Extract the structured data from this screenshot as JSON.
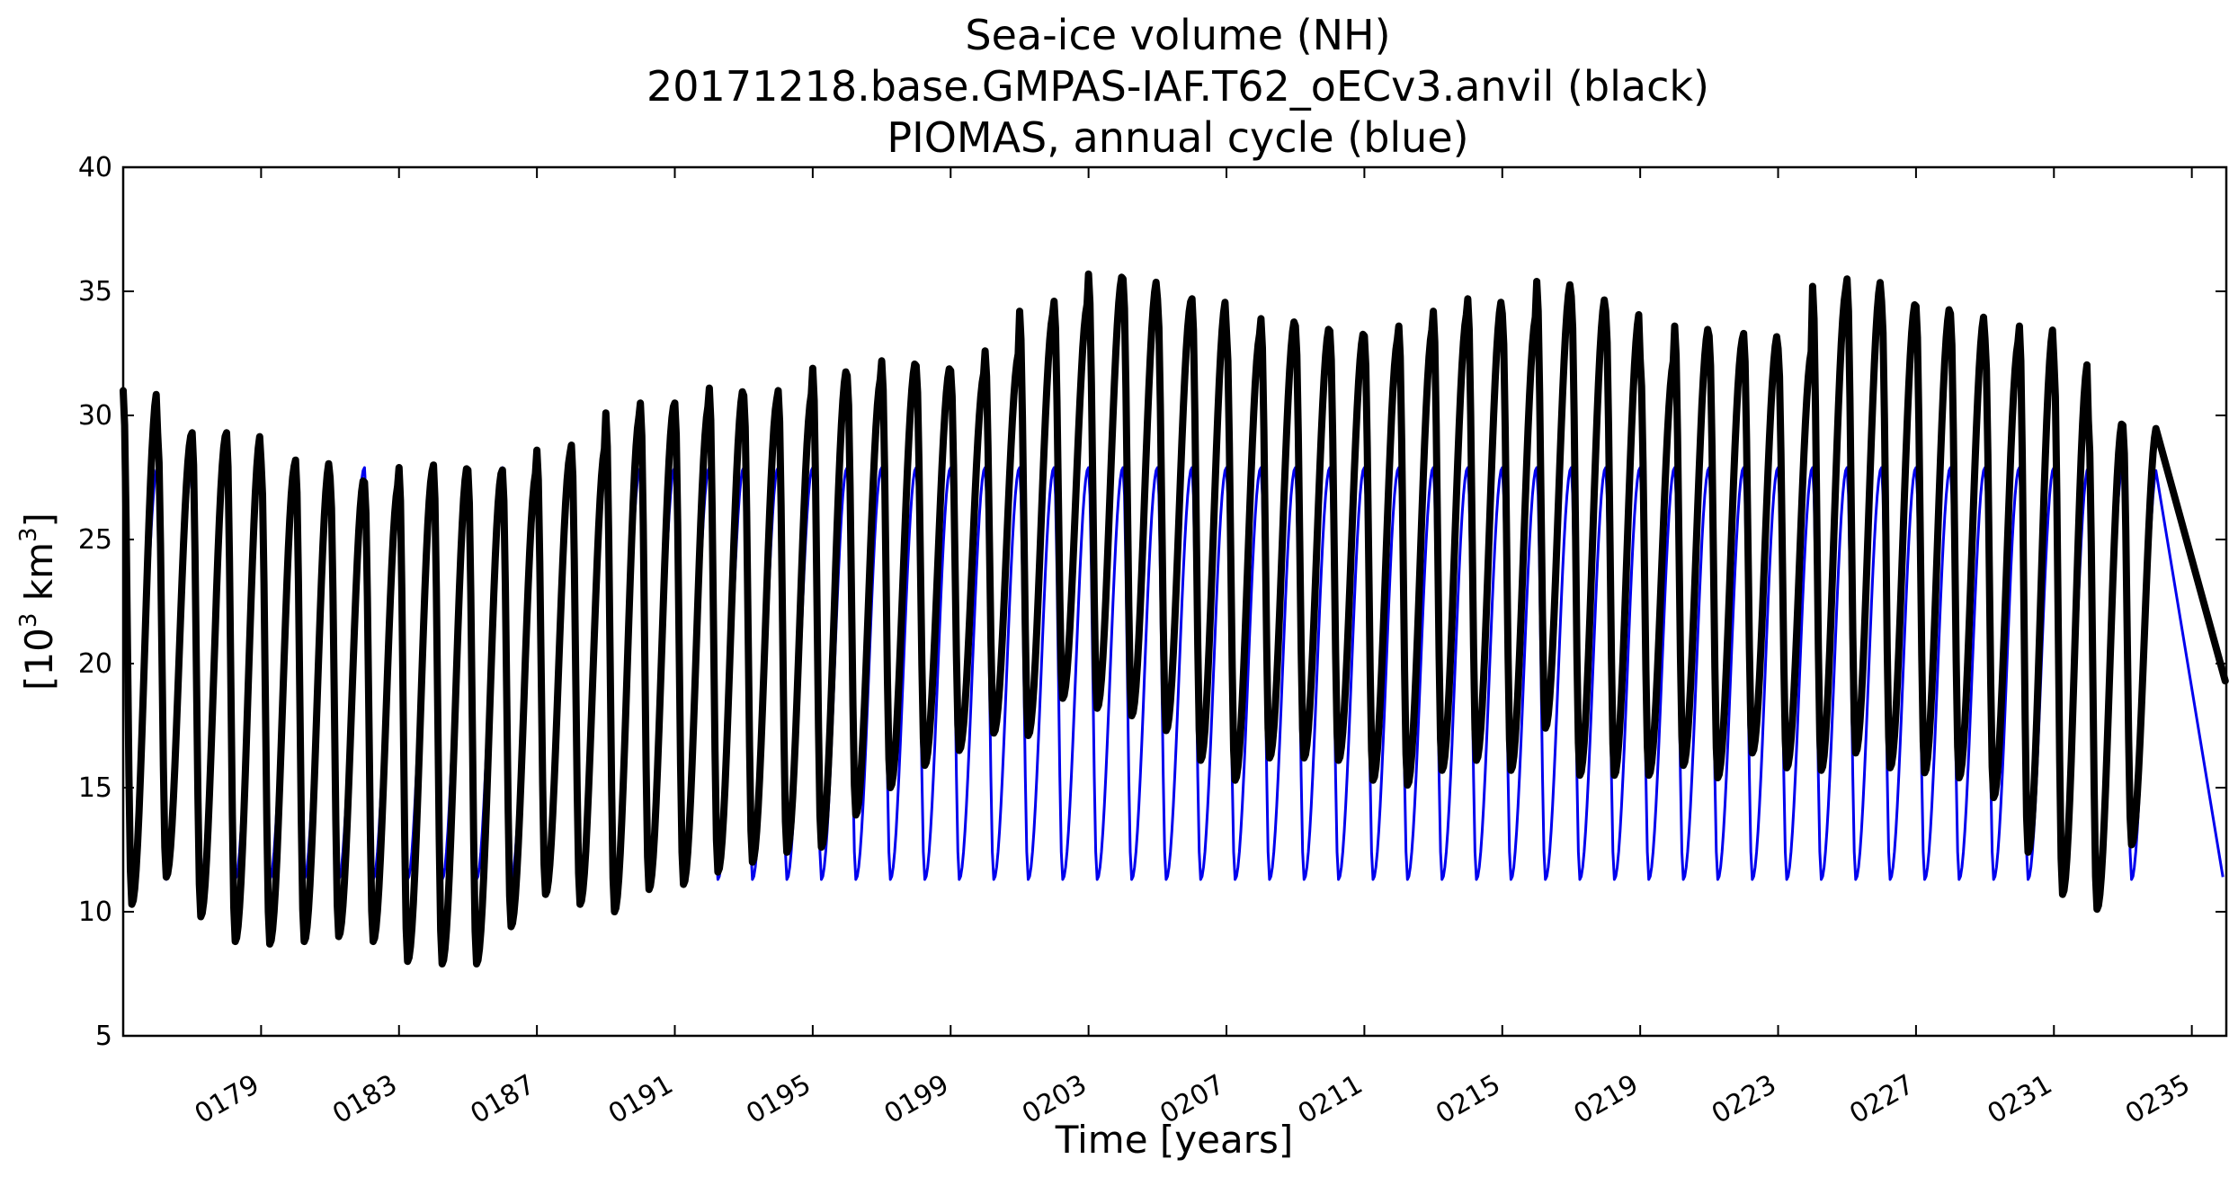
{
  "chart_data": {
    "type": "line",
    "title": "Sea-ice volume (NH)",
    "subtitle": [
      "20171218.base.GMPAS-IAF.T62_oECv3.anvil (black)",
      "PIOMAS, annual cycle (blue)"
    ],
    "xlabel": "Time [years]",
    "ylabel_main": "[10",
    "ylabel_sup1": "3",
    "ylabel_mid": " km",
    "ylabel_sup2": "3",
    "ylabel_end": "]",
    "xlim": [
      175.0,
      236.0
    ],
    "ylim": [
      5,
      40
    ],
    "x_ticks": [
      179,
      183,
      187,
      191,
      195,
      199,
      203,
      207,
      211,
      215,
      219,
      223,
      227,
      231,
      235
    ],
    "x_tick_labels": [
      "0179",
      "0183",
      "0187",
      "0191",
      "0195",
      "0199",
      "0203",
      "0207",
      "0211",
      "0215",
      "0219",
      "0223",
      "0227",
      "0231",
      "0235"
    ],
    "y_ticks": [
      5,
      10,
      15,
      20,
      25,
      30,
      35,
      40
    ],
    "y_tick_labels": [
      "5",
      "10",
      "15",
      "20",
      "25",
      "30",
      "35",
      "40"
    ],
    "grid": false,
    "legend": "none",
    "series": [
      {
        "color": "#000000",
        "x_start": 175.0,
        "annual_maxima": [
          31.0,
          29.3,
          29.3,
          29.3,
          28.1,
          28.2,
          27.5,
          27.3,
          27.9,
          28.0,
          27.8,
          27.8,
          28.6,
          28.8,
          30.1,
          30.5,
          30.5,
          31.1,
          30.8,
          31.0,
          31.9,
          31.6,
          32.2,
          32.0,
          31.8,
          32.6,
          34.2,
          34.6,
          35.7,
          35.5,
          34.7,
          34.7,
          33.4,
          33.9,
          33.6,
          33.4,
          33.2,
          33.6,
          34.2,
          34.7,
          34.1,
          35.4,
          34.8,
          34.2,
          32.3,
          33.6,
          33.2,
          33.3,
          32.7,
          35.2,
          35.5,
          34.6,
          34.4,
          34.1,
          33.1,
          33.6,
          32.2,
          29.8,
          29.6
        ],
        "annual_minima": [
          10.3,
          11.4,
          9.8,
          8.8,
          8.7,
          8.8,
          9.0,
          8.8,
          8.0,
          7.9,
          7.9,
          9.4,
          10.7,
          10.3,
          10.0,
          10.9,
          11.1,
          11.6,
          12.0,
          12.4,
          12.6,
          13.9,
          15.0,
          15.9,
          16.5,
          17.2,
          17.1,
          18.6,
          18.2,
          17.9,
          17.3,
          16.1,
          15.3,
          16.2,
          16.2,
          16.1,
          15.3,
          15.1,
          15.7,
          16.1,
          15.7,
          17.4,
          15.5,
          15.5,
          15.5,
          15.9,
          15.4,
          16.4,
          15.8,
          15.7,
          16.4,
          15.8,
          15.6,
          15.4,
          14.6,
          12.4,
          10.7,
          10.1,
          12.7
        ],
        "x_end": 235.97,
        "y_end": 19.3
      },
      {
        "color": "#0000ee",
        "x_start": 175.0,
        "annual_max": 27.9,
        "annual_min": 11.3,
        "x_end": 235.9,
        "y_end": 11.4
      }
    ]
  }
}
